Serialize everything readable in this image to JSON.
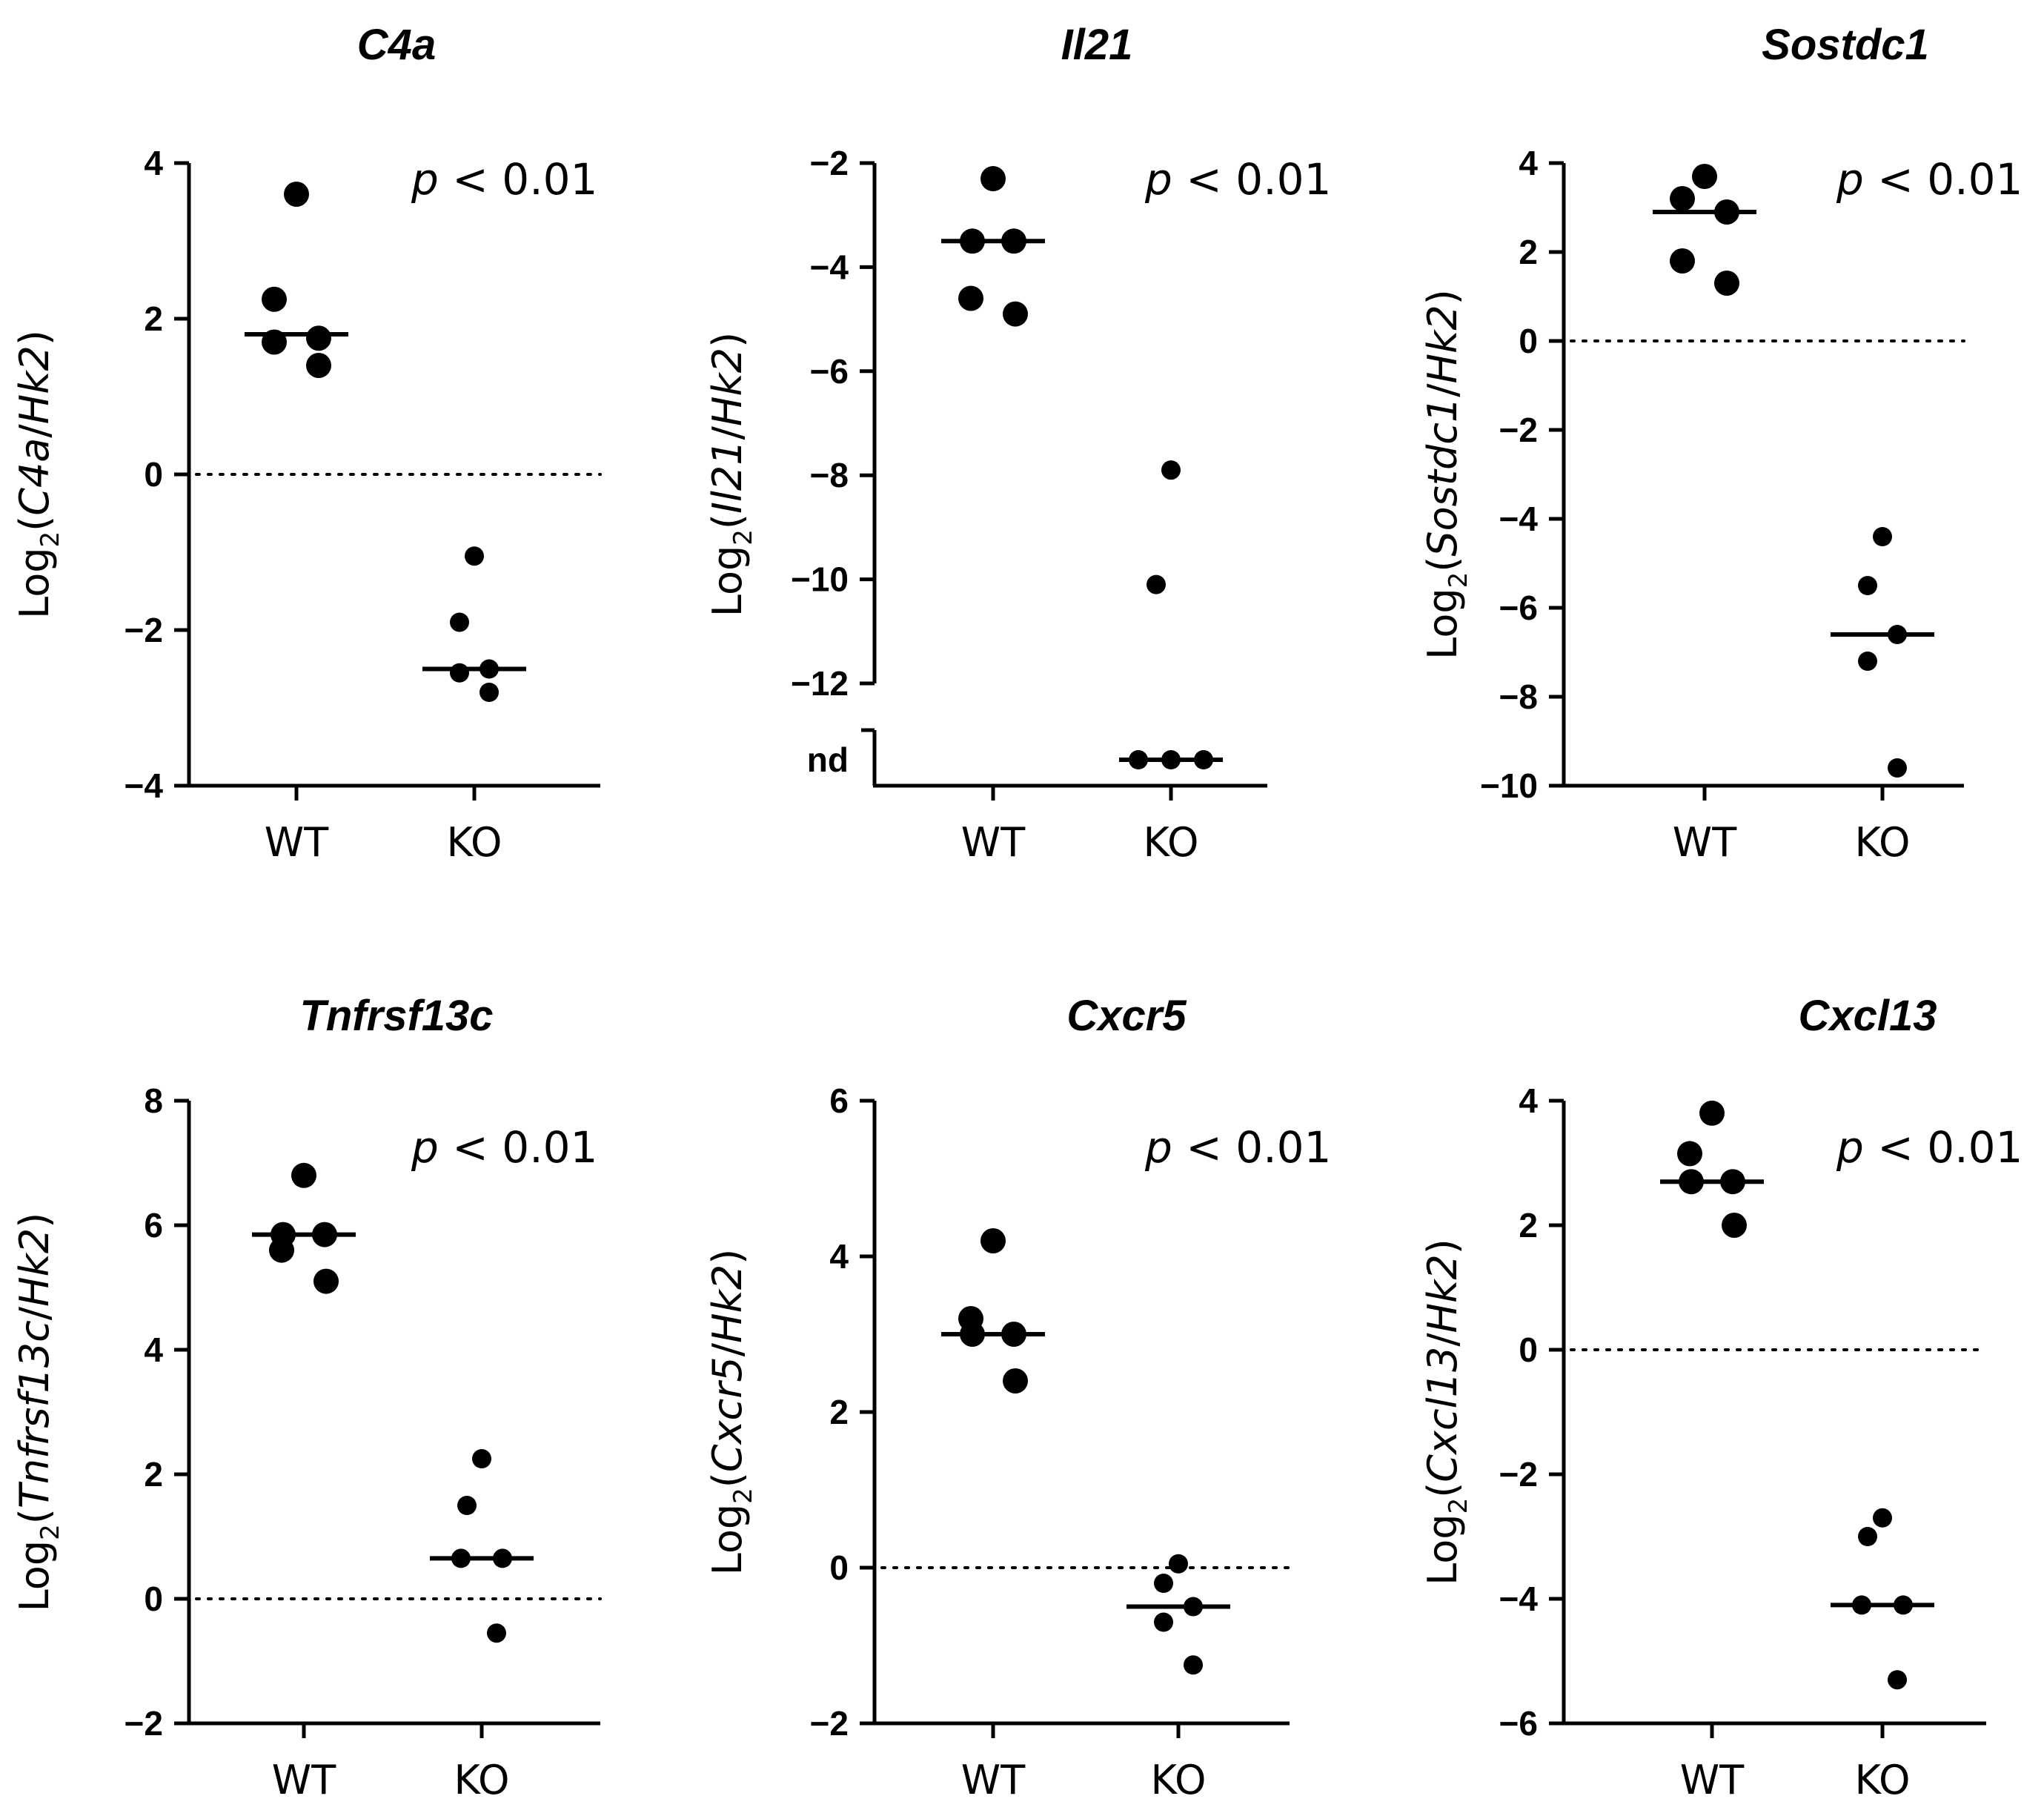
{
  "chart_data": [
    {
      "type": "scatter",
      "title": "C4a",
      "ylabel_prefix": "Log",
      "ylabel_sub": "2",
      "ylabel_gene": "C4a",
      "ylabel_ref": "Hk2",
      "ylabel_sep": "/",
      "ylabel_open": "(",
      "ylabel_close": ")",
      "p_symbol": "p",
      "p_text": " < 0.01",
      "ylim": [
        -4,
        4
      ],
      "yticks": [
        4,
        2,
        0,
        -2,
        -4
      ],
      "categories": [
        "WT",
        "KO"
      ],
      "reference_line": 0,
      "series": [
        {
          "name": "WT",
          "values": [
            3.6,
            2.25,
            1.75,
            1.7,
            1.4
          ],
          "median": 1.8
        },
        {
          "name": "KO",
          "values": [
            -1.05,
            -1.9,
            -2.5,
            -2.55,
            -2.8
          ],
          "median": -2.5
        }
      ]
    },
    {
      "type": "scatter",
      "title": "Il21",
      "ylabel_prefix": "Log",
      "ylabel_sub": "2",
      "ylabel_gene": "Il21",
      "ylabel_ref": "Hk2",
      "ylabel_sep": "/",
      "ylabel_open": "(",
      "ylabel_close": ")",
      "p_symbol": "p",
      "p_text": " < 0.01",
      "ylim": [
        -12,
        -2
      ],
      "yticks": [
        -2,
        -4,
        -6,
        -8,
        -10,
        -12
      ],
      "nd_label": "nd",
      "categories": [
        "WT",
        "KO"
      ],
      "reference_line": null,
      "series": [
        {
          "name": "WT",
          "values": [
            -2.3,
            -3.5,
            -3.5,
            -4.6,
            -4.9
          ],
          "median": -3.5
        },
        {
          "name": "KO",
          "values": [
            -7.9,
            -10.1,
            "nd",
            "nd",
            "nd"
          ],
          "median": "nd"
        }
      ]
    },
    {
      "type": "scatter",
      "title": "Sostdc1",
      "ylabel_prefix": "Log",
      "ylabel_sub": "2",
      "ylabel_gene": "Sostdc1",
      "ylabel_ref": "Hk2",
      "ylabel_sep": "/",
      "ylabel_open": "(",
      "ylabel_close": ")",
      "p_symbol": "p",
      "p_text": " < 0.01",
      "ylim": [
        -10,
        4
      ],
      "yticks": [
        4,
        2,
        0,
        -2,
        -4,
        -6,
        -8,
        -10
      ],
      "categories": [
        "WT",
        "KO"
      ],
      "reference_line": 0,
      "series": [
        {
          "name": "WT",
          "values": [
            3.7,
            3.2,
            2.9,
            1.8,
            1.3
          ],
          "median": 2.9
        },
        {
          "name": "KO",
          "values": [
            -4.4,
            -5.5,
            -6.6,
            -7.2,
            -9.6
          ],
          "median": -6.6
        }
      ]
    },
    {
      "type": "scatter",
      "title": "Tnfrsf13c",
      "ylabel_prefix": "Log",
      "ylabel_sub": "2",
      "ylabel_gene": "Tnfrsf13c",
      "ylabel_ref": "Hk2",
      "ylabel_sep": "/",
      "ylabel_open": "(",
      "ylabel_close": ")",
      "p_symbol": "p",
      "p_text": " < 0.01",
      "ylim": [
        -2,
        8
      ],
      "yticks": [
        8,
        6,
        4,
        2,
        0,
        -2
      ],
      "categories": [
        "WT",
        "KO"
      ],
      "reference_line": 0,
      "series": [
        {
          "name": "WT",
          "values": [
            6.8,
            5.85,
            5.85,
            5.6,
            5.1
          ],
          "median": 5.85
        },
        {
          "name": "KO",
          "values": [
            2.25,
            1.5,
            0.65,
            0.65,
            -0.55
          ],
          "median": 0.65
        }
      ]
    },
    {
      "type": "scatter",
      "title": "Cxcr5",
      "ylabel_prefix": "Log",
      "ylabel_sub": "2",
      "ylabel_gene": "Cxcr5",
      "ylabel_ref": "Hk2",
      "ylabel_sep": "/",
      "ylabel_open": "(",
      "ylabel_close": ")",
      "p_symbol": "p",
      "p_text": " < 0.01",
      "ylim": [
        -2,
        6
      ],
      "yticks": [
        6,
        4,
        2,
        0,
        -2
      ],
      "categories": [
        "WT",
        "KO"
      ],
      "reference_line": 0,
      "series": [
        {
          "name": "WT",
          "values": [
            4.2,
            3.2,
            3.0,
            3.0,
            2.4
          ],
          "median": 3.0
        },
        {
          "name": "KO",
          "values": [
            0.05,
            -0.2,
            -0.5,
            -0.7,
            -1.25
          ],
          "median": -0.5
        }
      ]
    },
    {
      "type": "scatter",
      "title": "Cxcl13",
      "ylabel_prefix": "Log",
      "ylabel_sub": "2",
      "ylabel_gene": "Cxcl13",
      "ylabel_ref": "Hk2",
      "ylabel_sep": "/",
      "ylabel_open": "(",
      "ylabel_close": ")",
      "p_symbol": "p",
      "p_text": " < 0.01",
      "ylim": [
        -6,
        4
      ],
      "yticks": [
        4,
        2,
        0,
        -2,
        -4,
        -6
      ],
      "categories": [
        "WT",
        "KO"
      ],
      "reference_line": 0,
      "series": [
        {
          "name": "WT",
          "values": [
            3.8,
            3.15,
            2.7,
            2.7,
            2.0
          ],
          "median": 2.7
        },
        {
          "name": "KO",
          "values": [
            -2.7,
            -3.0,
            -4.1,
            -4.1,
            -5.3
          ],
          "median": -4.1
        }
      ]
    }
  ]
}
